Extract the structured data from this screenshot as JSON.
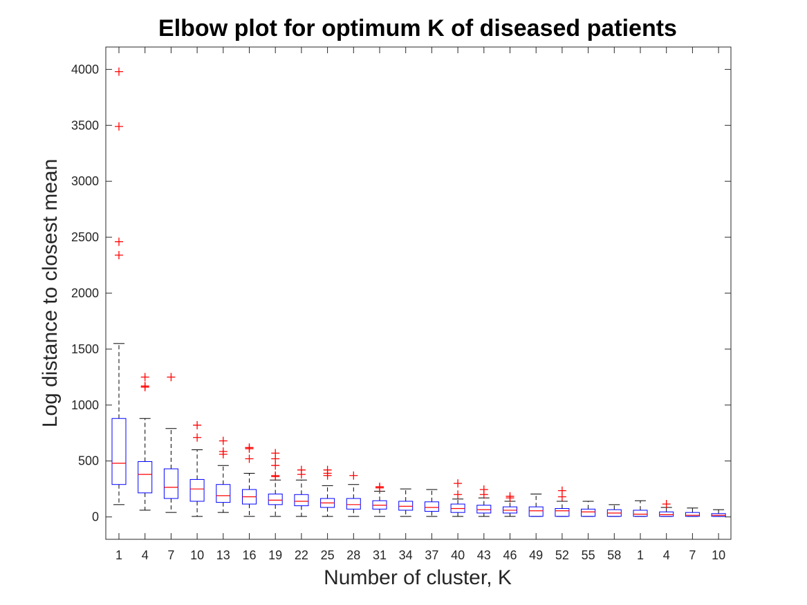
{
  "chart_data": {
    "type": "box",
    "title": "Elbow plot for optimum K of diseased patients",
    "xlabel": "Number of cluster, K",
    "ylabel": "Log distance to closest mean",
    "ylim": [
      -200,
      4200
    ],
    "y_ticks": [
      0,
      500,
      1000,
      1500,
      2000,
      2500,
      3000,
      3500,
      4000
    ],
    "x_tick_labels": [
      "1",
      "4",
      "7",
      "10",
      "13",
      "16",
      "19",
      "22",
      "25",
      "28",
      "31",
      "34",
      "37",
      "40",
      "43",
      "46",
      "49",
      "52",
      "55",
      "58",
      "1",
      "4",
      "7",
      "10"
    ],
    "grid": false,
    "colors": {
      "box": "#0000ff",
      "median": "#ff0000",
      "outlier": "#ff0000",
      "whisker": "#000000",
      "axes": "#262626"
    },
    "boxes": [
      {
        "label": "1",
        "q1": 290,
        "median": 480,
        "q3": 880,
        "low": 110,
        "high": 1550,
        "outliers": [
          2340,
          2460,
          3490,
          3980
        ]
      },
      {
        "label": "4",
        "q1": 215,
        "median": 380,
        "q3": 495,
        "low": 60,
        "high": 880,
        "outliers": [
          1160,
          1170,
          1250
        ]
      },
      {
        "label": "7",
        "q1": 165,
        "median": 265,
        "q3": 430,
        "low": 40,
        "high": 790,
        "outliers": [
          1250
        ]
      },
      {
        "label": "10",
        "q1": 140,
        "median": 250,
        "q3": 335,
        "low": 5,
        "high": 600,
        "outliers": [
          710,
          820
        ]
      },
      {
        "label": "13",
        "q1": 130,
        "median": 190,
        "q3": 290,
        "low": 40,
        "high": 460,
        "outliers": [
          560,
          585,
          680
        ]
      },
      {
        "label": "16",
        "q1": 115,
        "median": 180,
        "q3": 245,
        "low": 5,
        "high": 390,
        "outliers": [
          520,
          610,
          620
        ]
      },
      {
        "label": "19",
        "q1": 110,
        "median": 150,
        "q3": 205,
        "low": 5,
        "high": 330,
        "outliers": [
          360,
          370,
          460,
          520,
          570
        ]
      },
      {
        "label": "22",
        "q1": 100,
        "median": 140,
        "q3": 200,
        "low": 5,
        "high": 330,
        "outliers": [
          380,
          420
        ]
      },
      {
        "label": "25",
        "q1": 85,
        "median": 125,
        "q3": 165,
        "low": 5,
        "high": 280,
        "outliers": [
          370,
          390,
          420
        ]
      },
      {
        "label": "28",
        "q1": 70,
        "median": 110,
        "q3": 165,
        "low": 5,
        "high": 290,
        "outliers": [
          370
        ]
      },
      {
        "label": "31",
        "q1": 70,
        "median": 105,
        "q3": 145,
        "low": 5,
        "high": 230,
        "outliers": [
          260,
          270
        ]
      },
      {
        "label": "34",
        "q1": 60,
        "median": 95,
        "q3": 140,
        "low": 5,
        "high": 250,
        "outliers": []
      },
      {
        "label": "37",
        "q1": 50,
        "median": 85,
        "q3": 135,
        "low": 5,
        "high": 245,
        "outliers": []
      },
      {
        "label": "40",
        "q1": 40,
        "median": 75,
        "q3": 115,
        "low": 5,
        "high": 160,
        "outliers": [
          200,
          300
        ]
      },
      {
        "label": "43",
        "q1": 35,
        "median": 65,
        "q3": 105,
        "low": 5,
        "high": 170,
        "outliers": [
          200,
          245
        ]
      },
      {
        "label": "46",
        "q1": 35,
        "median": 60,
        "q3": 90,
        "low": 5,
        "high": 140,
        "outliers": [
          170,
          185
        ]
      },
      {
        "label": "49",
        "q1": 5,
        "median": 55,
        "q3": 90,
        "low": 5,
        "high": 205,
        "outliers": []
      },
      {
        "label": "52",
        "q1": 5,
        "median": 55,
        "q3": 75,
        "low": 5,
        "high": 140,
        "outliers": [
          180,
          235
        ]
      },
      {
        "label": "55",
        "q1": 5,
        "median": 45,
        "q3": 70,
        "low": 5,
        "high": 140,
        "outliers": []
      },
      {
        "label": "58",
        "q1": 5,
        "median": 35,
        "q3": 65,
        "low": 5,
        "high": 110,
        "outliers": []
      },
      {
        "label": "1",
        "q1": 5,
        "median": 25,
        "q3": 60,
        "low": 5,
        "high": 145,
        "outliers": []
      },
      {
        "label": "4",
        "q1": 5,
        "median": 20,
        "q3": 45,
        "low": 5,
        "high": 85,
        "outliers": [
          115
        ]
      },
      {
        "label": "7",
        "q1": 5,
        "median": 15,
        "q3": 40,
        "low": 5,
        "high": 80,
        "outliers": []
      },
      {
        "label": "10",
        "q1": 5,
        "median": 15,
        "q3": 30,
        "low": 5,
        "high": 65,
        "outliers": []
      }
    ]
  }
}
